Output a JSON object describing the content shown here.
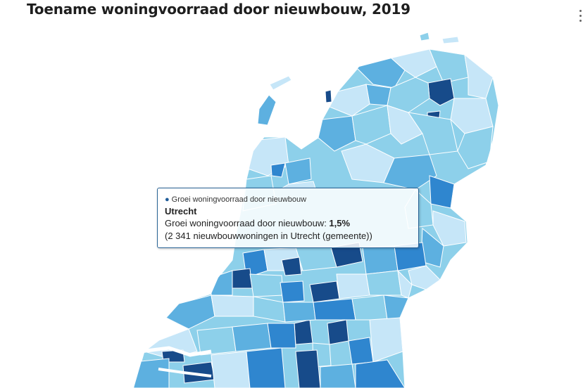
{
  "title": "Toename woningvoorraad door nieuwbouw, 2019",
  "menu_icon": "more-vertical-icon",
  "colors": {
    "class1": "#c6e6f8",
    "class2": "#8dd0ea",
    "class3": "#5db0e0",
    "class4": "#2f86cf",
    "class5": "#174b8a",
    "border": "#ffffff",
    "tooltip_border": "#2a6496"
  },
  "tooltip": {
    "series": "Groei woningvoorraad door nieuwbouw",
    "region": "Utrecht",
    "value_label": "Groei woningvoorraad door nieuwbouw: ",
    "value": "1,5%",
    "detail": "(2 341 nieuwbouwwoningen in Utrecht (gemeente))"
  }
}
